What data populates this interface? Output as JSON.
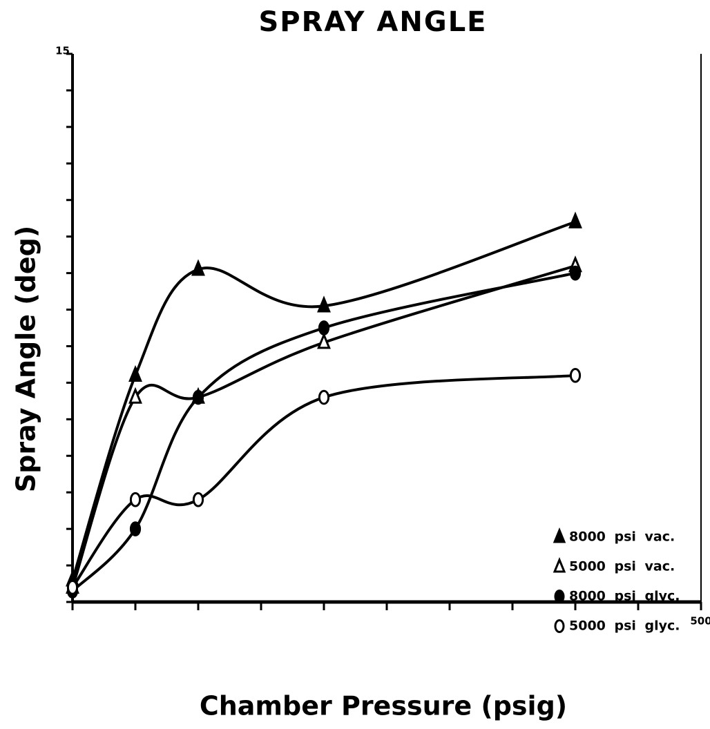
{
  "chart_data": {
    "type": "line",
    "title": "SPRAY ANGLE",
    "x_label": "Chamber Pressure (psig)",
    "y_label": "Spray Angle (deg)",
    "x": [
      0,
      50,
      100,
      200,
      400
    ],
    "xlim": [
      0,
      500
    ],
    "ylim": [
      0,
      15
    ],
    "xticks": [
      0,
      50,
      100,
      150,
      200,
      250,
      300,
      350,
      400,
      450,
      500
    ],
    "yticks": [
      0,
      1,
      2,
      3,
      4,
      5,
      6,
      7,
      8,
      9,
      10,
      11,
      12,
      13,
      14,
      15
    ],
    "legend": "lower right",
    "series": [
      {
        "name": "8000 psi vac.",
        "color": "#000000",
        "marker": "triangle-filled",
        "values": [
          0.6,
          6.2,
          9.1,
          8.1,
          10.4
        ]
      },
      {
        "name": "5000 psi vac.",
        "color": "#000000",
        "marker": "triangle-open",
        "values": [
          0.4,
          5.6,
          5.6,
          7.1,
          9.2
        ]
      },
      {
        "name": "8000 psi glyc.",
        "color": "#000000",
        "marker": "circle-filled",
        "values": [
          0.3,
          2.0,
          5.6,
          7.5,
          9.0
        ]
      },
      {
        "name": "5000 psi glyc.",
        "color": "#000000",
        "marker": "circle-open",
        "values": [
          0.4,
          2.8,
          2.8,
          5.6,
          6.2
        ]
      }
    ]
  }
}
